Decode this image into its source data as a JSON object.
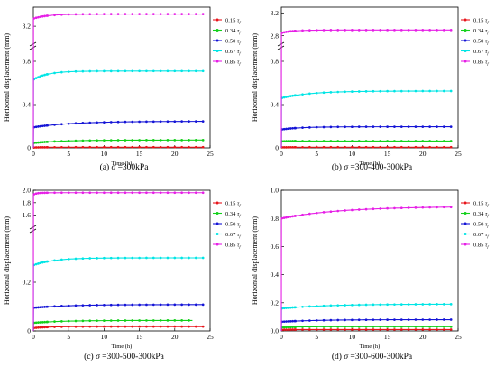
{
  "chart_data": [
    {
      "type": "line",
      "caption": {
        "label": "(a)",
        "symbol": "σ",
        "value": "=300kPa"
      },
      "xlabel": "Time (h)",
      "ylabel": "Horizontal displacement (mm)",
      "xlim": [
        0,
        25
      ],
      "xticks": [
        "0",
        "5",
        "10",
        "15",
        "20",
        "25"
      ],
      "axis_break": true,
      "lower_ylim": [
        0,
        0.9
      ],
      "lower_yticks": [
        "0",
        "0.4",
        "0.8"
      ],
      "upper_ylim": [
        3.0,
        3.45
      ],
      "upper_yticks": [
        "3.2"
      ],
      "legend_placement": "right",
      "series": [
        {
          "name": "0.15",
          "color": "#e8151b",
          "marker": "circle",
          "end_x": 24.0,
          "initial": 0.003,
          "final": 0.006,
          "rate": 1.0
        },
        {
          "name": "0.34",
          "color": "#12d11a",
          "marker": "circle",
          "end_x": 24.0,
          "initial": 0.045,
          "final": 0.072,
          "rate": 0.25
        },
        {
          "name": "0.50",
          "color": "#1414d6",
          "marker": "circle",
          "end_x": 24.0,
          "initial": 0.19,
          "final": 0.245,
          "rate": 0.18
        },
        {
          "name": "0.67",
          "color": "#00e5e5",
          "marker": "circle",
          "end_x": 24.0,
          "initial": 0.63,
          "final": 0.71,
          "rate": 0.5
        },
        {
          "name": "0.85",
          "color": "#e61fe6",
          "marker": "circle",
          "end_x": 24.0,
          "initial": 3.3,
          "final": 3.36,
          "rate": 0.5
        }
      ]
    },
    {
      "type": "line",
      "caption": {
        "label": "(b)",
        "symbol": "σ",
        "value": "=300-400-300kPa"
      },
      "xlabel": "Time (h)",
      "ylabel": "Horizontal displacement (mm)",
      "xlim": [
        0,
        25
      ],
      "xticks": [
        "0",
        "5",
        "10",
        "15",
        "20",
        "25"
      ],
      "axis_break": true,
      "lower_ylim": [
        0,
        0.9
      ],
      "lower_yticks": [
        "0",
        "0.4",
        "0.8"
      ],
      "upper_ylim": [
        2.7,
        3.3
      ],
      "upper_yticks": [
        "2.8",
        "3.2"
      ],
      "legend_placement": "right",
      "series": [
        {
          "name": "0.15",
          "color": "#e8151b",
          "marker": "circle",
          "end_x": 24.0,
          "initial": 0.005,
          "final": 0.006,
          "rate": 1.0
        },
        {
          "name": "0.34",
          "color": "#12d11a",
          "marker": "circle",
          "end_x": 24.0,
          "initial": 0.06,
          "final": 0.063,
          "rate": 1.0
        },
        {
          "name": "0.50",
          "color": "#1414d6",
          "marker": "circle",
          "end_x": 24.0,
          "initial": 0.17,
          "final": 0.195,
          "rate": 0.35
        },
        {
          "name": "0.67",
          "color": "#00e5e5",
          "marker": "circle",
          "end_x": 24.0,
          "initial": 0.46,
          "final": 0.525,
          "rate": 0.25
        },
        {
          "name": "0.85",
          "color": "#e61fe6",
          "marker": "circle",
          "end_x": 24.0,
          "initial": 2.85,
          "final": 2.9,
          "rate": 0.6
        }
      ]
    },
    {
      "type": "line",
      "caption": {
        "label": "(c)",
        "symbol": "σ",
        "value": "=300-500-300kPa"
      },
      "xlabel": "Time (h)",
      "ylabel": "Horizontal displacement (mm)",
      "xlim": [
        0,
        25
      ],
      "xticks": [
        "0",
        "5",
        "10",
        "15",
        "20",
        "25"
      ],
      "axis_break": true,
      "lower_ylim": [
        0,
        0.4
      ],
      "lower_yticks": [
        "0",
        "0.2"
      ],
      "upper_ylim": [
        1.45,
        2.0
      ],
      "upper_yticks": [
        "1.6",
        "1.8",
        "2.0"
      ],
      "legend_placement": "right",
      "series": [
        {
          "name": "0.15",
          "color": "#e8151b",
          "marker": "circle",
          "end_x": 24.0,
          "initial": 0.012,
          "final": 0.018,
          "rate": 0.5
        },
        {
          "name": "0.34",
          "color": "#12d11a",
          "marker": "circle",
          "end_x": 22.5,
          "initial": 0.033,
          "final": 0.043,
          "rate": 0.25
        },
        {
          "name": "0.50",
          "color": "#1414d6",
          "marker": "circle",
          "end_x": 24.0,
          "initial": 0.095,
          "final": 0.108,
          "rate": 0.2
        },
        {
          "name": "0.67",
          "color": "#00e5e5",
          "marker": "circle",
          "end_x": 24.0,
          "initial": 0.27,
          "final": 0.3,
          "rate": 0.35
        },
        {
          "name": "0.85",
          "color": "#e61fe6",
          "marker": "circle",
          "end_x": 24.0,
          "initial": 1.93,
          "final": 1.96,
          "rate": 2.0
        }
      ]
    },
    {
      "type": "line",
      "caption": {
        "label": "(d)",
        "symbol": "σ",
        "value": "=300-600-300kPa"
      },
      "xlabel": "Time (h)",
      "ylabel": "Horizontal displacement (mm)",
      "xlim": [
        0,
        25
      ],
      "xticks": [
        "0",
        "5",
        "10",
        "15",
        "20",
        "25"
      ],
      "axis_break": false,
      "ylim": [
        0,
        1.0
      ],
      "yticks": [
        "0.0",
        "0.2",
        "0.4",
        "0.6",
        "0.8",
        "1.0"
      ],
      "legend_placement": "right",
      "series": [
        {
          "name": "0.15",
          "color": "#e8151b",
          "marker": "circle",
          "end_x": 24.0,
          "initial": 0.008,
          "final": 0.01,
          "rate": 1.0
        },
        {
          "name": "0.34",
          "color": "#12d11a",
          "marker": "circle",
          "end_x": 24.0,
          "initial": 0.025,
          "final": 0.03,
          "rate": 0.5
        },
        {
          "name": "0.50",
          "color": "#1414d6",
          "marker": "circle",
          "end_x": 24.0,
          "initial": 0.065,
          "final": 0.08,
          "rate": 0.2
        },
        {
          "name": "0.67",
          "color": "#00e5e5",
          "marker": "circle",
          "end_x": 24.0,
          "initial": 0.16,
          "final": 0.19,
          "rate": 0.15
        },
        {
          "name": "0.85",
          "color": "#e61fe6",
          "marker": "circle",
          "end_x": 24.0,
          "initial": 0.8,
          "final": 0.88,
          "rate": 0.12
        }
      ]
    }
  ],
  "legend_suffix": "f",
  "legend_suffix_symbol": "τ"
}
